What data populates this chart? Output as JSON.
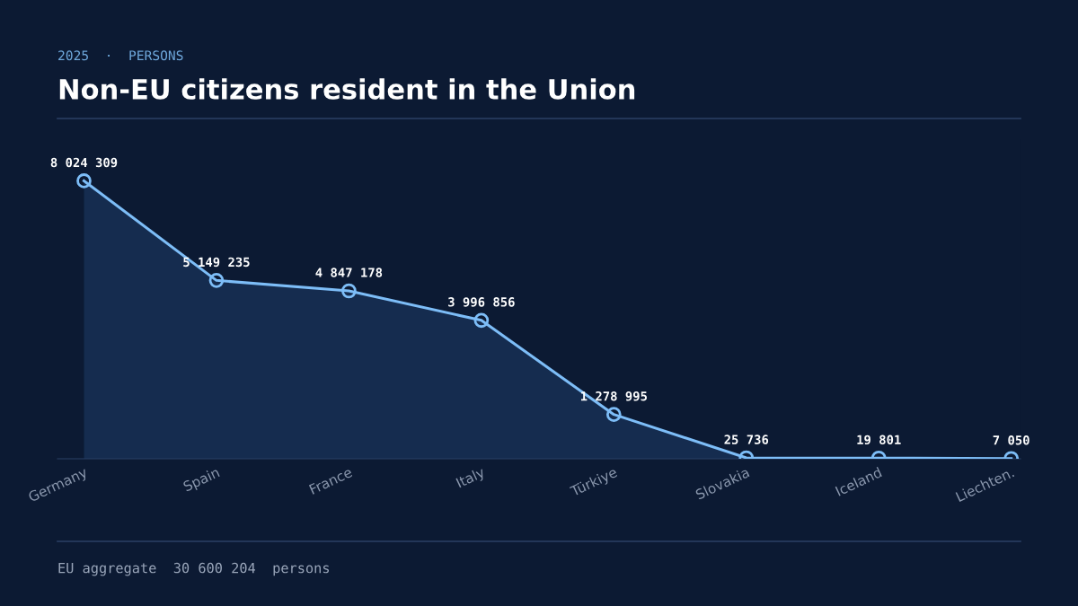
{
  "chart_data": {
    "type": "area",
    "subtitle": "2025  ·  PERSONS",
    "title": "Non-EU citizens resident in the Union",
    "categories": [
      "Germany",
      "Spain",
      "France",
      "Italy",
      "Türkiye",
      "Slovakia",
      "Iceland",
      "Liechten."
    ],
    "series": [
      {
        "color": "#7dbdf7",
        "values": [
          8024309,
          5149235,
          4847178,
          3996856,
          1278995,
          25736,
          19801,
          7050
        ],
        "value_labels": [
          "8 024 309",
          "5 149 235",
          "4 847 178",
          "3 996 856",
          "1 278 995",
          "25 736",
          "19 801",
          "7 050"
        ]
      }
    ],
    "tick_labels": "x",
    "marker": "circle",
    "line_style": "solid",
    "annotations": [
      "EU aggregate  30 600 204  persons"
    ]
  }
}
